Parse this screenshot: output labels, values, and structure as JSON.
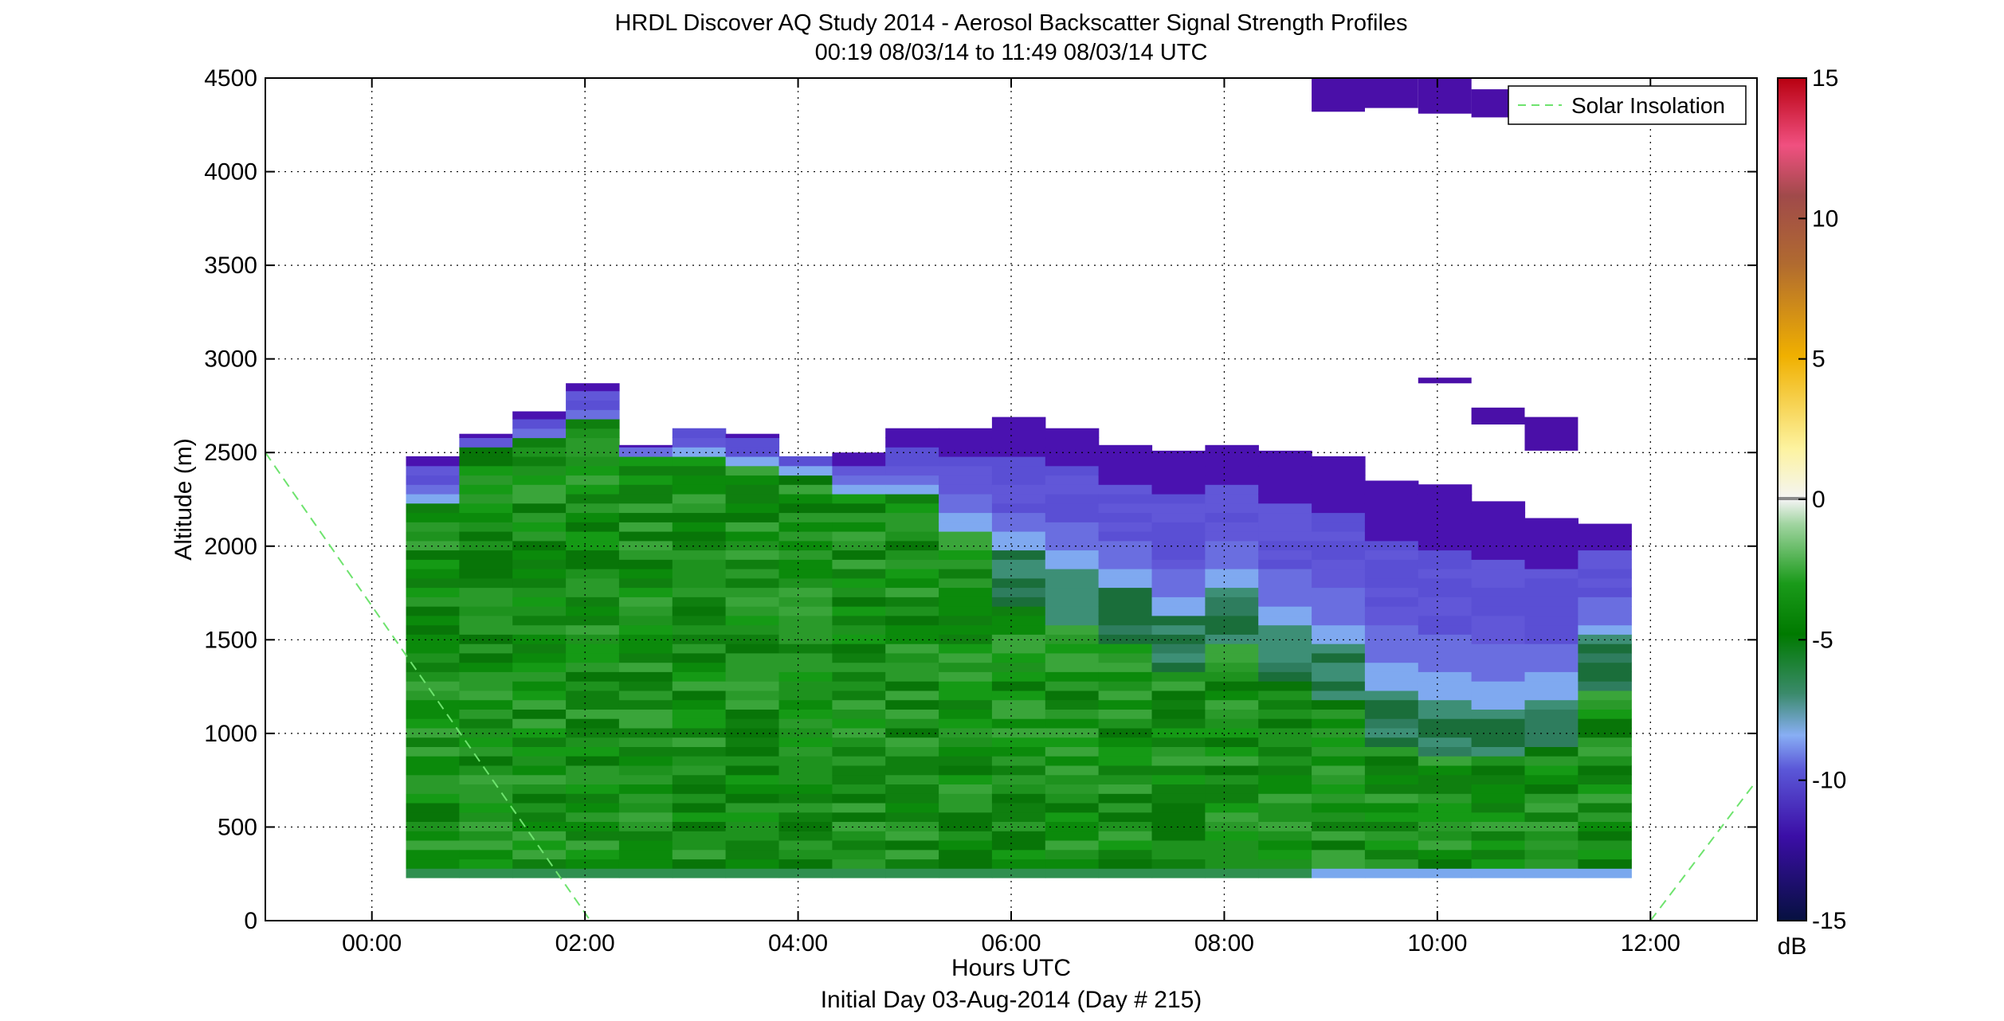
{
  "chart_data": {
    "type": "heatmap",
    "title": "HRDL Discover AQ Study 2014 - Aerosol Backscatter Signal Strength Profiles",
    "subtitle": "00:19 08/03/14 to 11:49 08/03/14  UTC",
    "xlabel": "Hours UTC",
    "xlabel2": "Initial Day 03-Aug-2014 (Day # 215)",
    "ylabel": "Altitude (m)",
    "xlim": [
      -1.0,
      13.0
    ],
    "ylim": [
      0,
      4500
    ],
    "x_ticks": [
      0,
      2,
      4,
      6,
      8,
      10,
      12
    ],
    "x_tick_labels": [
      "00:00",
      "02:00",
      "04:00",
      "06:00",
      "08:00",
      "10:00",
      "12:00"
    ],
    "y_ticks": [
      0,
      500,
      1000,
      1500,
      2000,
      2500,
      3000,
      3500,
      4000,
      4500
    ],
    "y_tick_labels": [
      "0",
      "500",
      "1000",
      "1500",
      "2000",
      "2500",
      "3000",
      "3500",
      "4000",
      "4500"
    ],
    "grid": true,
    "legend": {
      "entries": [
        "Solar Insolation"
      ],
      "placement": "top-right"
    },
    "colorbar": {
      "range": [
        -15,
        15
      ],
      "ticks": [
        -15,
        -10,
        -5,
        0,
        5,
        10,
        15
      ],
      "tick_labels": [
        "-15",
        "-10",
        "-5",
        "0",
        "5",
        "10",
        "15"
      ],
      "unit_label": "dB"
    },
    "profile_times_h": [
      0.32,
      0.82,
      1.32,
      1.82,
      2.32,
      2.82,
      3.32,
      3.82,
      4.32,
      4.82,
      5.32,
      5.82,
      6.32,
      6.82,
      7.32,
      7.82,
      8.32,
      8.82,
      9.32,
      9.82,
      10.32,
      10.82,
      11.32
    ],
    "profile_base_m": 230,
    "profile_top_m": [
      2480,
      2600,
      2720,
      2870,
      2540,
      2630,
      2600,
      2480,
      2500,
      2630,
      2630,
      2690,
      2630,
      2540,
      2510,
      2540,
      2510,
      2480,
      2350,
      2330,
      2240,
      2150,
      2120
    ],
    "green_top_m": [
      2200,
      2500,
      2560,
      2640,
      2470,
      2480,
      2410,
      2380,
      2260,
      2250,
      2080,
      1950,
      1850,
      1750,
      1600,
      1750,
      1550,
      1450,
      1200,
      1150,
      1130,
      1180,
      1500
    ],
    "upper_layers": [
      {
        "time_start_h": 8.82,
        "time_end_h": 9.32,
        "alt_bottom_m": 4320,
        "alt_top_m": 4500
      },
      {
        "time_start_h": 9.32,
        "time_end_h": 9.82,
        "alt_bottom_m": 4340,
        "alt_top_m": 4500
      },
      {
        "time_start_h": 9.82,
        "time_end_h": 10.32,
        "alt_bottom_m": 4310,
        "alt_top_m": 4500
      },
      {
        "time_start_h": 10.32,
        "time_end_h": 10.82,
        "alt_bottom_m": 4290,
        "alt_top_m": 4440
      },
      {
        "time_start_h": 9.82,
        "time_end_h": 10.32,
        "alt_bottom_m": 2870,
        "alt_top_m": 2900
      },
      {
        "time_start_h": 10.32,
        "time_end_h": 10.82,
        "alt_bottom_m": 2650,
        "alt_top_m": 2740
      },
      {
        "time_start_h": 10.82,
        "time_end_h": 11.32,
        "alt_bottom_m": 2510,
        "alt_top_m": 2690
      }
    ],
    "solar_insolation": [
      {
        "x": -1.0,
        "y": 2500
      },
      {
        "x": 2.05,
        "y": 0
      },
      {
        "x": 12.0,
        "y": 0
      },
      {
        "x": 13.0,
        "y": 750
      }
    ]
  },
  "colors": {
    "axis": "#000000",
    "grid": "#000000",
    "solar_line": "#6ee36e",
    "upper_layer": "#4a0fa8"
  }
}
